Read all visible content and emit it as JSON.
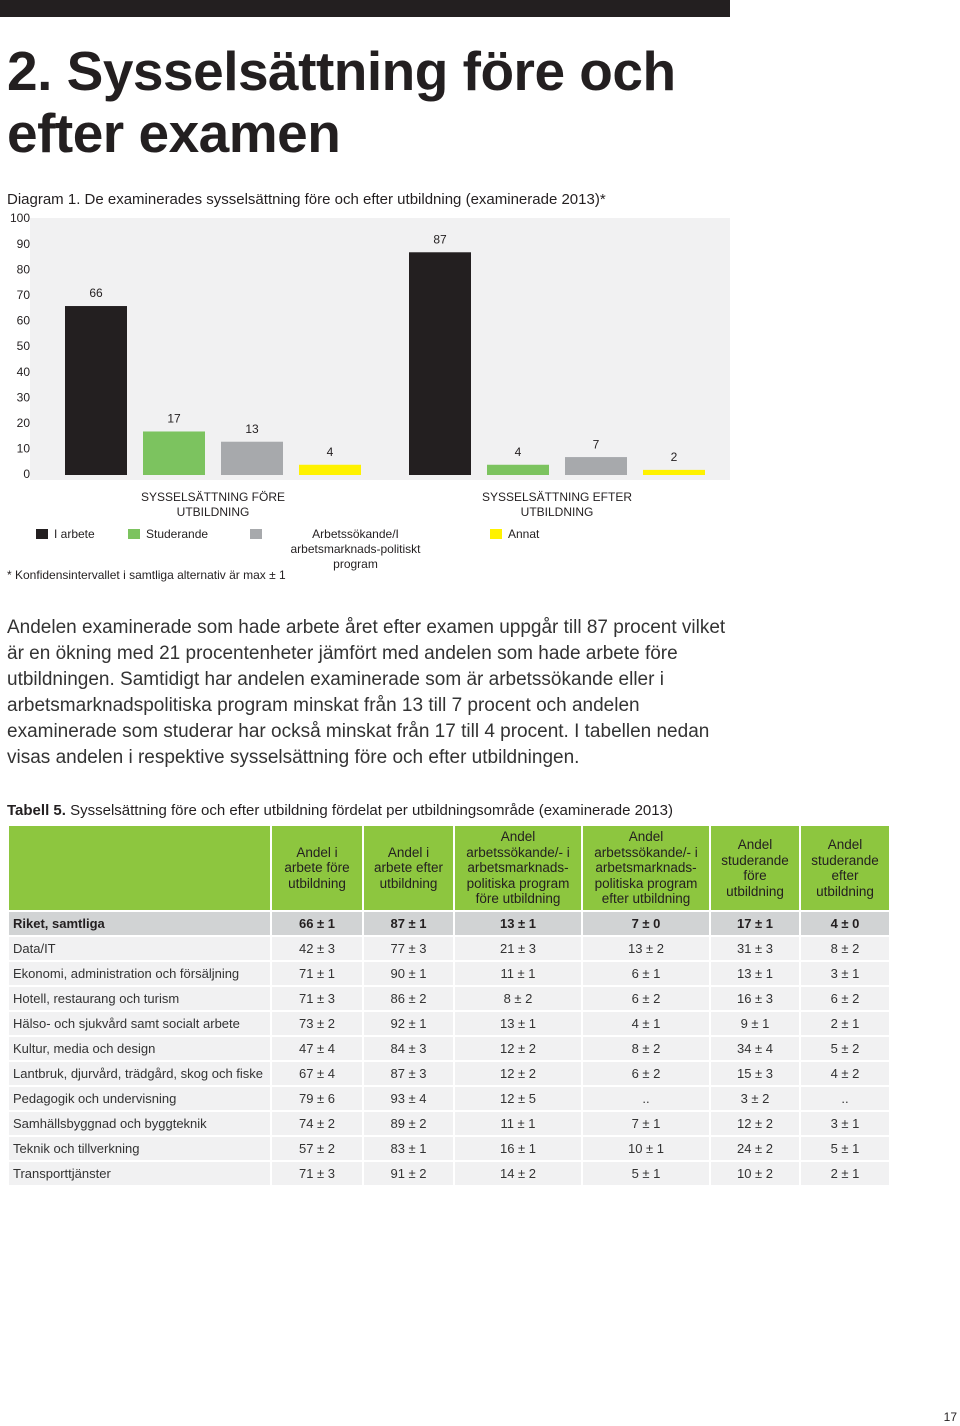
{
  "heading": "2. Sysselsättning före och efter examen",
  "chart_data": {
    "type": "bar",
    "title": "Diagram 1. De examinerades sysselsättning före och efter utbildning (examinerade 2013)*",
    "categories": [
      "SYSSELSÄTTNING FÖRE UTBILDNING",
      "SYSSELSÄTTNING EFTER UTBILDNING"
    ],
    "series": [
      {
        "name": "I arbete",
        "color": "#231f20",
        "values": [
          66,
          87
        ]
      },
      {
        "name": "Studerande",
        "color": "#7cc35f",
        "values": [
          17,
          4
        ]
      },
      {
        "name": "Arbetssökande/I arbetsmarknads-politiskt program",
        "color": "#a7a9ac",
        "values": [
          13,
          7
        ]
      },
      {
        "name": "Annat",
        "color": "#fff200",
        "values": [
          4,
          2
        ]
      }
    ],
    "ylim": [
      0,
      100
    ],
    "yticks": [
      0,
      10,
      20,
      30,
      40,
      50,
      60,
      70,
      80,
      90,
      100
    ],
    "grid": false,
    "footnote": "* Konfidensintervallet i samtliga alternativ är max ± 1"
  },
  "paragraph": "Andelen examinerade som hade arbete året efter examen uppgår till 87 procent vilket är en ökning med 21 procentenheter jämfört med andelen som hade arbete före utbildningen. Samtidigt har andelen examinerade som är arbetssökande eller i arbetsmarknadspolitiska program minskat från 13 till 7 procent och andelen examinerade som studerar har också minskat från 17 till 4 procent. I tabellen nedan visas andelen i respektive sysselsättning före och efter utbildningen.",
  "table": {
    "label": "Tabell 5.",
    "title": "Sysselsättning före och efter utbildning fördelat per utbildningsområde (examinerade 2013)",
    "columns": [
      "Andel i arbete före utbildning",
      "Andel i arbete efter utbildning",
      "Andel arbetssökande/- i arbetsmarknads-politiska program före utbildning",
      "Andel arbetssökande/- i arbetsmarknads-politiska program efter utbildning",
      "Andel studerande före utbildning",
      "Andel studerande efter utbildning"
    ],
    "rows": [
      [
        "Riket, samtliga",
        "66 ± 1",
        "87 ± 1",
        "13 ± 1",
        "7 ± 0",
        "17 ± 1",
        "4 ± 0"
      ],
      [
        "Data/IT",
        "42 ± 3",
        "77 ± 3",
        "21 ± 3",
        "13 ± 2",
        "31 ± 3",
        "8 ± 2"
      ],
      [
        "Ekonomi, administration och försäljning",
        "71 ± 1",
        "90 ± 1",
        "11 ± 1",
        "6 ± 1",
        "13 ± 1",
        "3 ± 1"
      ],
      [
        "Hotell, restaurang och turism",
        "71 ± 3",
        "86 ± 2",
        "8 ± 2",
        "6 ± 2",
        "16 ± 3",
        "6 ± 2"
      ],
      [
        "Hälso- och sjukvård samt socialt arbete",
        "73 ± 2",
        "92 ± 1",
        "13 ± 1",
        "4 ± 1",
        "9 ± 1",
        "2 ± 1"
      ],
      [
        "Kultur, media och design",
        "47 ± 4",
        "84 ± 3",
        "12 ± 2",
        "8 ± 2",
        "34 ± 4",
        "5 ± 2"
      ],
      [
        "Lantbruk, djurvård, trädgård, skog och fiske",
        "67 ± 4",
        "87 ± 3",
        "12 ± 2",
        "6 ± 2",
        "15 ± 3",
        "4 ± 2"
      ],
      [
        "Pedagogik och undervisning",
        "79 ± 6",
        "93 ± 4",
        "12 ± 5",
        "..",
        "3 ± 2",
        ".."
      ],
      [
        "Samhällsbyggnad och byggteknik",
        "74 ± 2",
        "89 ± 2",
        "11 ± 1",
        "7 ± 1",
        "12 ± 2",
        "3 ± 1"
      ],
      [
        "Teknik och tillverkning",
        "57 ± 2",
        "83 ± 1",
        "16 ± 1",
        "10 ± 1",
        "24 ± 2",
        "5 ± 1"
      ],
      [
        "Transporttjänster",
        "71 ± 3",
        "91 ± 2",
        "14 ± 2",
        "5 ± 1",
        "10 ± 2",
        "2 ± 1"
      ]
    ]
  },
  "page_number": "17"
}
